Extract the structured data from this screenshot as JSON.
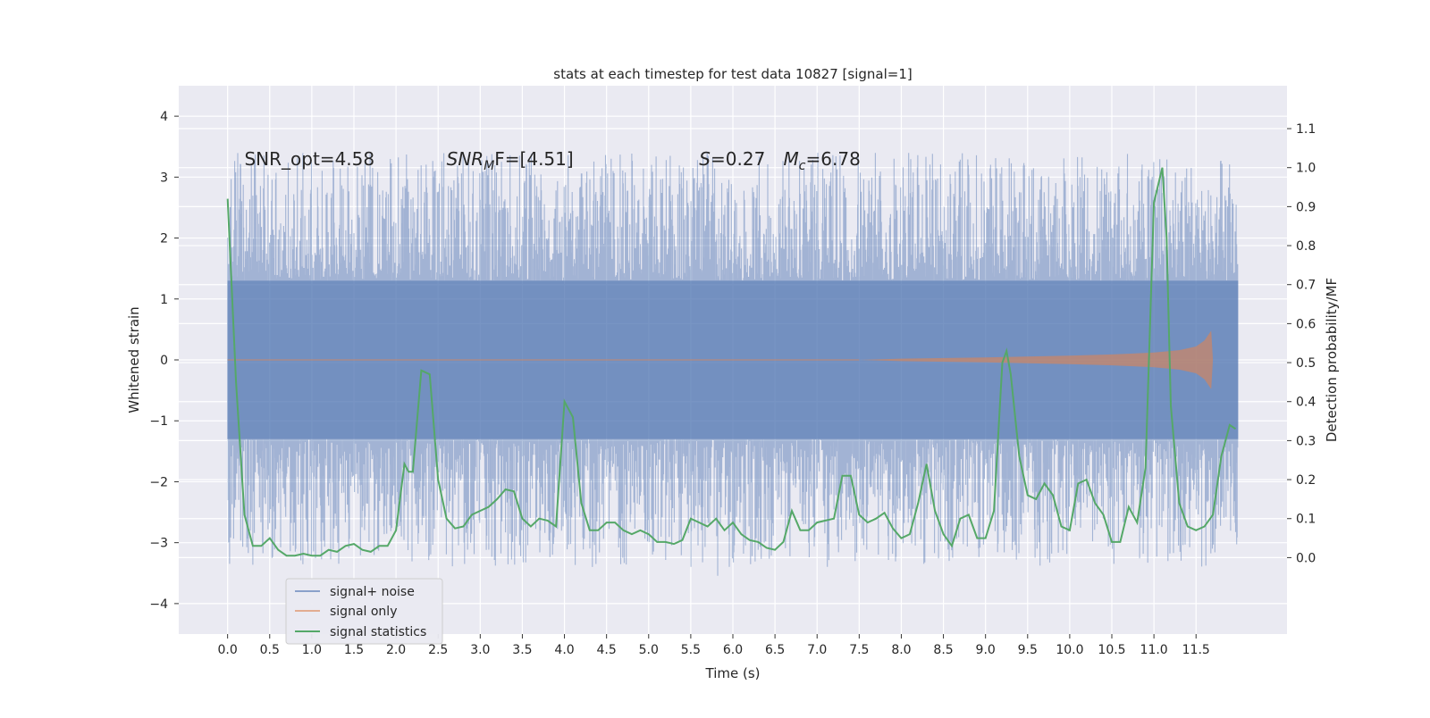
{
  "chart_data": {
    "type": "line",
    "title": "stats at each timestep for test data 10827 [signal=1]",
    "xlabel": "Time (s)",
    "ylabel_left": "Whitened strain",
    "ylabel_right": "Detection probability/MF",
    "xlim": [
      -0.58,
      12.58
    ],
    "ylim_left": [
      -4.5,
      4.5
    ],
    "ylim_right": [
      -0.196,
      1.21
    ],
    "x_ticks": [
      "0.0",
      "0.5",
      "1.0",
      "1.5",
      "2.0",
      "2.5",
      "3.0",
      "3.5",
      "4.0",
      "4.5",
      "5.0",
      "5.5",
      "6.0",
      "6.5",
      "7.0",
      "7.5",
      "8.0",
      "8.5",
      "9.0",
      "9.5",
      "10.0",
      "10.5",
      "11.0",
      "11.5"
    ],
    "y_ticks_left": [
      "4",
      "3",
      "2",
      "1",
      "0",
      "−1",
      "−2",
      "−3",
      "−4"
    ],
    "y_ticks_right": [
      "1.1",
      "1.0",
      "0.9",
      "0.8",
      "0.7",
      "0.6",
      "0.5",
      "0.4",
      "0.3",
      "0.2",
      "0.1",
      "0.0"
    ],
    "grid": true,
    "legend_position": "lower-left",
    "annotations": [
      {
        "text": "SNR_opt=4.58",
        "x": 0.2,
        "y": 3.3
      },
      {
        "text": "SNR",
        "sub": "M",
        "suffix": "F=[4.51]",
        "x": 2.6,
        "y": 3.3
      },
      {
        "text": "S",
        "suffix": "=0.27",
        "x": 5.6,
        "y": 3.3
      },
      {
        "text": "M",
        "sub": "c",
        "suffix": "=6.78",
        "x": 6.6,
        "y": 3.3
      }
    ],
    "series": [
      {
        "name": "signal+ noise",
        "color": "#4c72b0",
        "axis": "left",
        "band_inner": 1.3,
        "duration": 12.0
      },
      {
        "name": "signal only",
        "color": "#dd8452",
        "axis": "left",
        "envelope": [
          [
            7.5,
            0.0
          ],
          [
            8.0,
            0.02
          ],
          [
            9.0,
            0.04
          ],
          [
            10.0,
            0.07
          ],
          [
            10.5,
            0.09
          ],
          [
            11.0,
            0.12
          ],
          [
            11.3,
            0.16
          ],
          [
            11.5,
            0.22
          ],
          [
            11.6,
            0.32
          ],
          [
            11.68,
            0.48
          ],
          [
            11.7,
            0.0
          ]
        ]
      },
      {
        "name": "signal statistics",
        "color": "#55a868",
        "axis": "right",
        "x": [
          0.0,
          0.1,
          0.2,
          0.3,
          0.4,
          0.5,
          0.6,
          0.7,
          0.8,
          0.9,
          1.0,
          1.1,
          1.2,
          1.3,
          1.4,
          1.5,
          1.6,
          1.7,
          1.8,
          1.9,
          2.0,
          2.1,
          2.15,
          2.2,
          2.3,
          2.4,
          2.5,
          2.6,
          2.7,
          2.8,
          2.9,
          3.0,
          3.1,
          3.2,
          3.3,
          3.4,
          3.5,
          3.6,
          3.7,
          3.8,
          3.9,
          4.0,
          4.1,
          4.2,
          4.3,
          4.4,
          4.5,
          4.6,
          4.7,
          4.8,
          4.9,
          5.0,
          5.1,
          5.2,
          5.3,
          5.4,
          5.5,
          5.6,
          5.7,
          5.8,
          5.9,
          6.0,
          6.1,
          6.2,
          6.3,
          6.4,
          6.5,
          6.6,
          6.7,
          6.8,
          6.9,
          7.0,
          7.1,
          7.2,
          7.3,
          7.4,
          7.5,
          7.6,
          7.7,
          7.8,
          7.9,
          8.0,
          8.1,
          8.2,
          8.3,
          8.4,
          8.5,
          8.6,
          8.7,
          8.8,
          8.9,
          9.0,
          9.1,
          9.2,
          9.25,
          9.3,
          9.4,
          9.5,
          9.6,
          9.7,
          9.8,
          9.9,
          10.0,
          10.1,
          10.2,
          10.3,
          10.4,
          10.5,
          10.6,
          10.7,
          10.8,
          10.9,
          11.0,
          11.1,
          11.15,
          11.2,
          11.3,
          11.4,
          11.5,
          11.6,
          11.7,
          11.8,
          11.9,
          11.97
        ],
        "values": [
          0.92,
          0.45,
          0.11,
          0.03,
          0.03,
          0.05,
          0.02,
          0.005,
          0.005,
          0.01,
          0.005,
          0.005,
          0.02,
          0.015,
          0.03,
          0.035,
          0.02,
          0.015,
          0.03,
          0.03,
          0.07,
          0.24,
          0.22,
          0.22,
          0.48,
          0.47,
          0.2,
          0.1,
          0.075,
          0.08,
          0.11,
          0.12,
          0.13,
          0.15,
          0.175,
          0.17,
          0.1,
          0.08,
          0.1,
          0.095,
          0.08,
          0.4,
          0.36,
          0.14,
          0.07,
          0.07,
          0.09,
          0.09,
          0.07,
          0.06,
          0.07,
          0.06,
          0.04,
          0.04,
          0.035,
          0.045,
          0.1,
          0.09,
          0.08,
          0.1,
          0.07,
          0.09,
          0.06,
          0.045,
          0.04,
          0.025,
          0.02,
          0.04,
          0.12,
          0.07,
          0.07,
          0.09,
          0.095,
          0.1,
          0.21,
          0.21,
          0.11,
          0.09,
          0.1,
          0.115,
          0.075,
          0.05,
          0.06,
          0.14,
          0.24,
          0.12,
          0.06,
          0.03,
          0.1,
          0.11,
          0.05,
          0.05,
          0.12,
          0.5,
          0.53,
          0.47,
          0.26,
          0.16,
          0.15,
          0.19,
          0.16,
          0.08,
          0.07,
          0.19,
          0.2,
          0.14,
          0.11,
          0.04,
          0.04,
          0.13,
          0.09,
          0.23,
          0.91,
          1.0,
          0.82,
          0.39,
          0.14,
          0.08,
          0.07,
          0.08,
          0.11,
          0.26,
          0.34,
          0.33
        ]
      }
    ]
  }
}
